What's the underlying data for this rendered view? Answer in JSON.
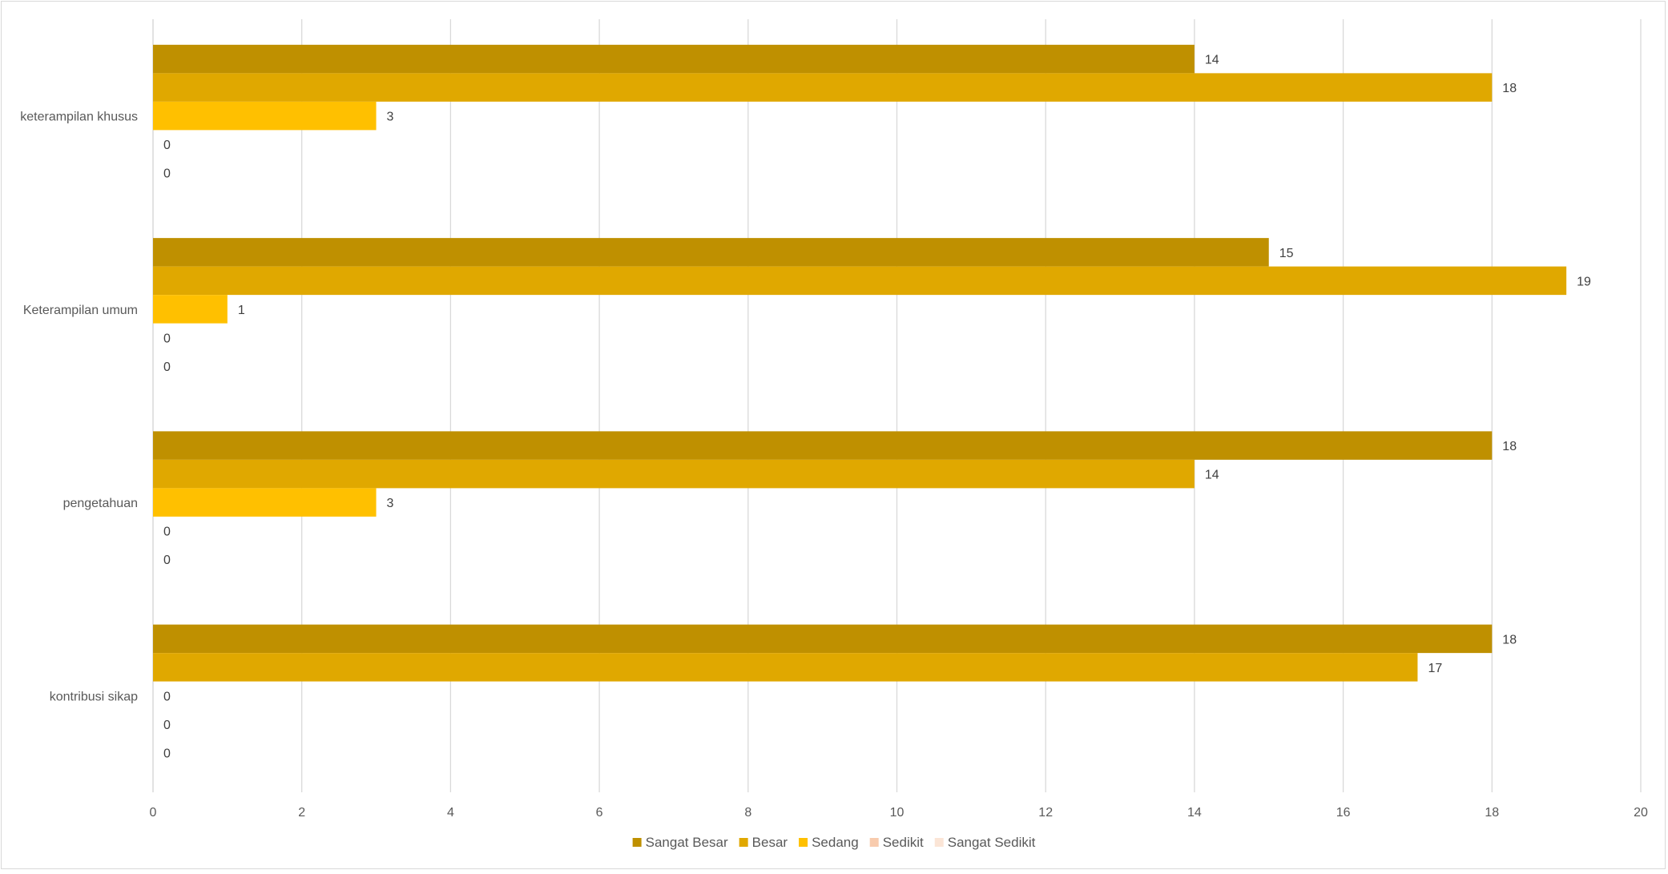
{
  "chart_data": {
    "type": "bar",
    "orientation": "horizontal",
    "categories": [
      "keterampilan khusus",
      "Keterampilan umum",
      "pengetahuan",
      "kontribusi sikap"
    ],
    "series": [
      {
        "name": "Sangat Besar",
        "color": "#BF9000",
        "values": [
          14,
          15,
          18,
          18
        ]
      },
      {
        "name": "Besar",
        "color": "#E0A800",
        "values": [
          18,
          19,
          14,
          17
        ]
      },
      {
        "name": "Sedang",
        "color": "#FFC000",
        "values": [
          3,
          1,
          3,
          0
        ]
      },
      {
        "name": "Sedikit",
        "color": "#F8CBAD",
        "values": [
          0,
          0,
          0,
          0
        ]
      },
      {
        "name": "Sangat Sedikit",
        "color": "#FBE5D6",
        "values": [
          0,
          0,
          0,
          0
        ]
      }
    ],
    "xlim": [
      0,
      20
    ],
    "x_ticks": [
      0,
      2,
      4,
      6,
      8,
      10,
      12,
      14,
      16,
      18,
      20
    ],
    "data_labels": true,
    "grid": "vertical",
    "legend_position": "bottom",
    "title": "",
    "xlabel": "",
    "ylabel": ""
  }
}
